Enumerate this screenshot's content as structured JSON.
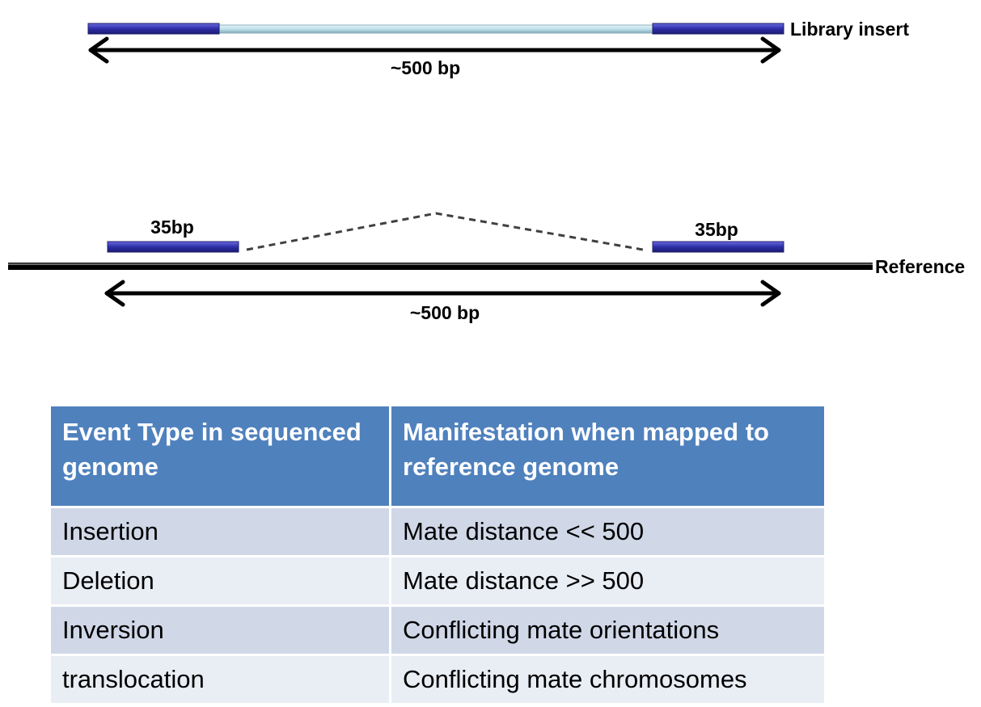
{
  "diagram": {
    "library_insert_label": "Library insert",
    "top_span_label": "~500 bp",
    "left_read_label": "35bp",
    "right_read_label": "35bp",
    "reference_label": "Reference",
    "bottom_span_label": "~500 bp",
    "colors": {
      "read": "#2e2ea8",
      "insert": "#bfe0ea",
      "reference": "#000000",
      "arrow": "#000000",
      "connector": "#404040"
    }
  },
  "table": {
    "headers": {
      "event": "Event Type in sequenced genome",
      "manifestation": "Manifestation when mapped to reference genome"
    },
    "rows": [
      {
        "event": "Insertion",
        "manifestation": "Mate distance << 500"
      },
      {
        "event": "Deletion",
        "manifestation": "Mate distance >> 500"
      },
      {
        "event": "Inversion",
        "manifestation": "Conflicting mate orientations"
      },
      {
        "event": "translocation",
        "manifestation": "Conflicting mate chromosomes"
      }
    ],
    "colors": {
      "header": "#4f81bd",
      "row_odd": "#d0d8e8",
      "row_even": "#e9edf4"
    }
  }
}
